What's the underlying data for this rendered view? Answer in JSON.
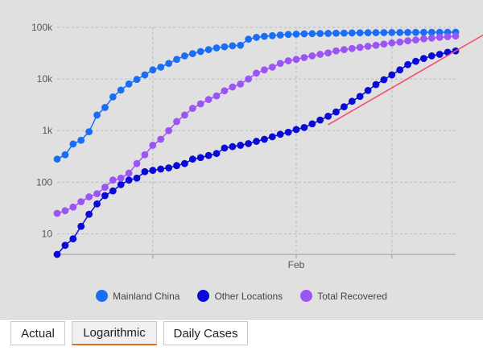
{
  "tabs": {
    "items": [
      {
        "label": "Actual",
        "active": false
      },
      {
        "label": "Logarithmic",
        "active": true
      },
      {
        "label": "Daily Cases",
        "active": false
      }
    ]
  },
  "legend": [
    {
      "label": "Mainland China",
      "color": "#1a6ef5"
    },
    {
      "label": "Other Locations",
      "color": "#0a0ad8"
    },
    {
      "label": "Total Recovered",
      "color": "#9b55f5"
    }
  ],
  "chart_data": {
    "type": "line",
    "y_scale": "log",
    "ylim": [
      4,
      100000
    ],
    "y_ticks": [
      {
        "value": 10,
        "label": "10"
      },
      {
        "value": 100,
        "label": "100"
      },
      {
        "value": 1000,
        "label": "1k"
      },
      {
        "value": 10000,
        "label": "10k"
      },
      {
        "value": 100000,
        "label": "100k"
      }
    ],
    "x_ticks": [
      {
        "index": 12,
        "label": ""
      },
      {
        "index": 30,
        "label": "Feb"
      },
      {
        "index": 42,
        "label": ""
      }
    ],
    "grid": true,
    "legend_position": "bottom",
    "trend_line": {
      "color": "#f0506e",
      "from": {
        "index": 34,
        "value": 1300
      },
      "to": {
        "index": 56,
        "value": 120000
      }
    },
    "series": [
      {
        "name": "Mainland China",
        "color": "#1a6ef5",
        "values": [
          280,
          340,
          550,
          650,
          950,
          2000,
          2800,
          4500,
          6100,
          8000,
          9800,
          12000,
          15000,
          17000,
          20000,
          24000,
          28000,
          31000,
          34000,
          37000,
          40000,
          42000,
          44000,
          45000,
          59000,
          64000,
          67000,
          69000,
          71000,
          73000,
          74000,
          75000,
          75500,
          76000,
          76500,
          77000,
          77500,
          78000,
          78500,
          78800,
          79000,
          79200,
          79400,
          79600,
          79800,
          80000,
          80100,
          80200,
          80300,
          80400,
          80500
        ]
      },
      {
        "name": "Other Locations",
        "color": "#0a0ad8",
        "values": [
          4,
          6,
          8,
          14,
          24,
          38,
          55,
          68,
          90,
          110,
          120,
          160,
          170,
          180,
          190,
          210,
          230,
          280,
          300,
          330,
          360,
          460,
          490,
          520,
          560,
          620,
          680,
          760,
          850,
          930,
          1050,
          1150,
          1350,
          1600,
          1900,
          2300,
          2900,
          3700,
          4600,
          6000,
          7800,
          9700,
          12000,
          15000,
          19000,
          22000,
          25000,
          28000,
          30000,
          33000,
          35000
        ]
      },
      {
        "name": "Total Recovered",
        "color": "#9b55f5",
        "values": [
          25,
          28,
          33,
          42,
          52,
          60,
          80,
          110,
          120,
          150,
          230,
          340,
          520,
          680,
          1000,
          1500,
          2000,
          2700,
          3300,
          4000,
          4700,
          5900,
          7000,
          8000,
          10000,
          13000,
          15000,
          17000,
          20000,
          22500,
          24000,
          26000,
          28000,
          30000,
          32000,
          35000,
          37000,
          39000,
          41000,
          43000,
          45000,
          47500,
          50000,
          52000,
          55000,
          57000,
          60000,
          62000,
          64000,
          66000,
          68000
        ]
      }
    ]
  }
}
